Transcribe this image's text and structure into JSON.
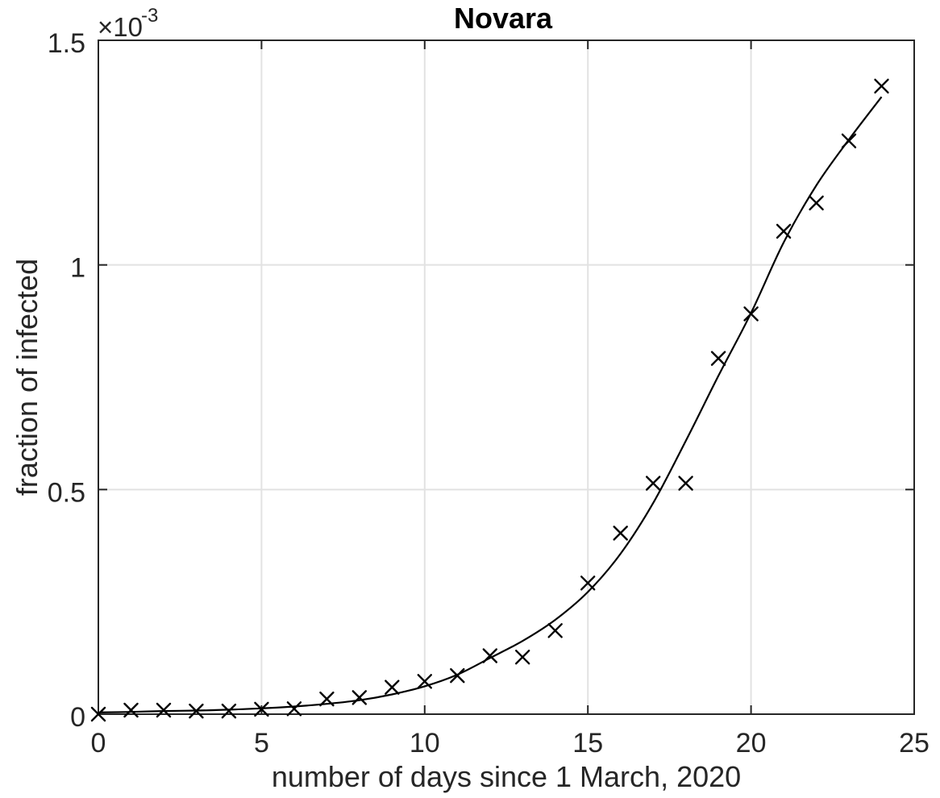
{
  "chart_data": {
    "type": "scatter",
    "title": "Novara",
    "xlabel": "number of days since 1 March, 2020",
    "ylabel": "fraction of infected",
    "y_axis_multiplier": {
      "base": "×10",
      "exponent": "-3"
    },
    "value_unit": "multiples of 1e-3 (per y-axis multiplier)",
    "xlim": [
      0,
      25
    ],
    "ylim": [
      0,
      1.5
    ],
    "xticks": [
      0,
      5,
      10,
      15,
      20,
      25
    ],
    "xtick_labels": [
      "0",
      "5",
      "10",
      "15",
      "20",
      "25"
    ],
    "yticks": [
      0,
      0.5,
      1,
      1.5
    ],
    "ytick_labels": [
      "0",
      "0.5",
      "1",
      "1.5"
    ],
    "grid": true,
    "legend": "none",
    "x": [
      0,
      1,
      2,
      3,
      4,
      5,
      6,
      7,
      8,
      9,
      10,
      11,
      12,
      13,
      14,
      15,
      16,
      17,
      18,
      19,
      20,
      21,
      22,
      23,
      24
    ],
    "series": [
      {
        "name": "observed fraction of infected",
        "type": "scatter",
        "marker": "x",
        "color": "#000000",
        "values": [
          0.0,
          0.009,
          0.009,
          0.007,
          0.007,
          0.011,
          0.012,
          0.034,
          0.037,
          0.06,
          0.073,
          0.086,
          0.13,
          0.127,
          0.186,
          0.292,
          0.403,
          0.514,
          0.514,
          0.792,
          0.891,
          1.075,
          1.138,
          1.276,
          1.398
        ]
      },
      {
        "name": "fitted model curve",
        "type": "line",
        "marker": "none",
        "color": "#000000",
        "values": [
          0.004,
          0.005,
          0.007,
          0.008,
          0.01,
          0.013,
          0.017,
          0.023,
          0.031,
          0.044,
          0.062,
          0.088,
          0.125,
          0.163,
          0.21,
          0.272,
          0.357,
          0.47,
          0.608,
          0.753,
          0.893,
          1.05,
          1.177,
          1.279,
          1.374
        ]
      }
    ],
    "colors": {
      "axis": "#262626",
      "grid": "#e2e2e2",
      "text": "#262626",
      "title": "#000000",
      "background": "#ffffff"
    }
  }
}
